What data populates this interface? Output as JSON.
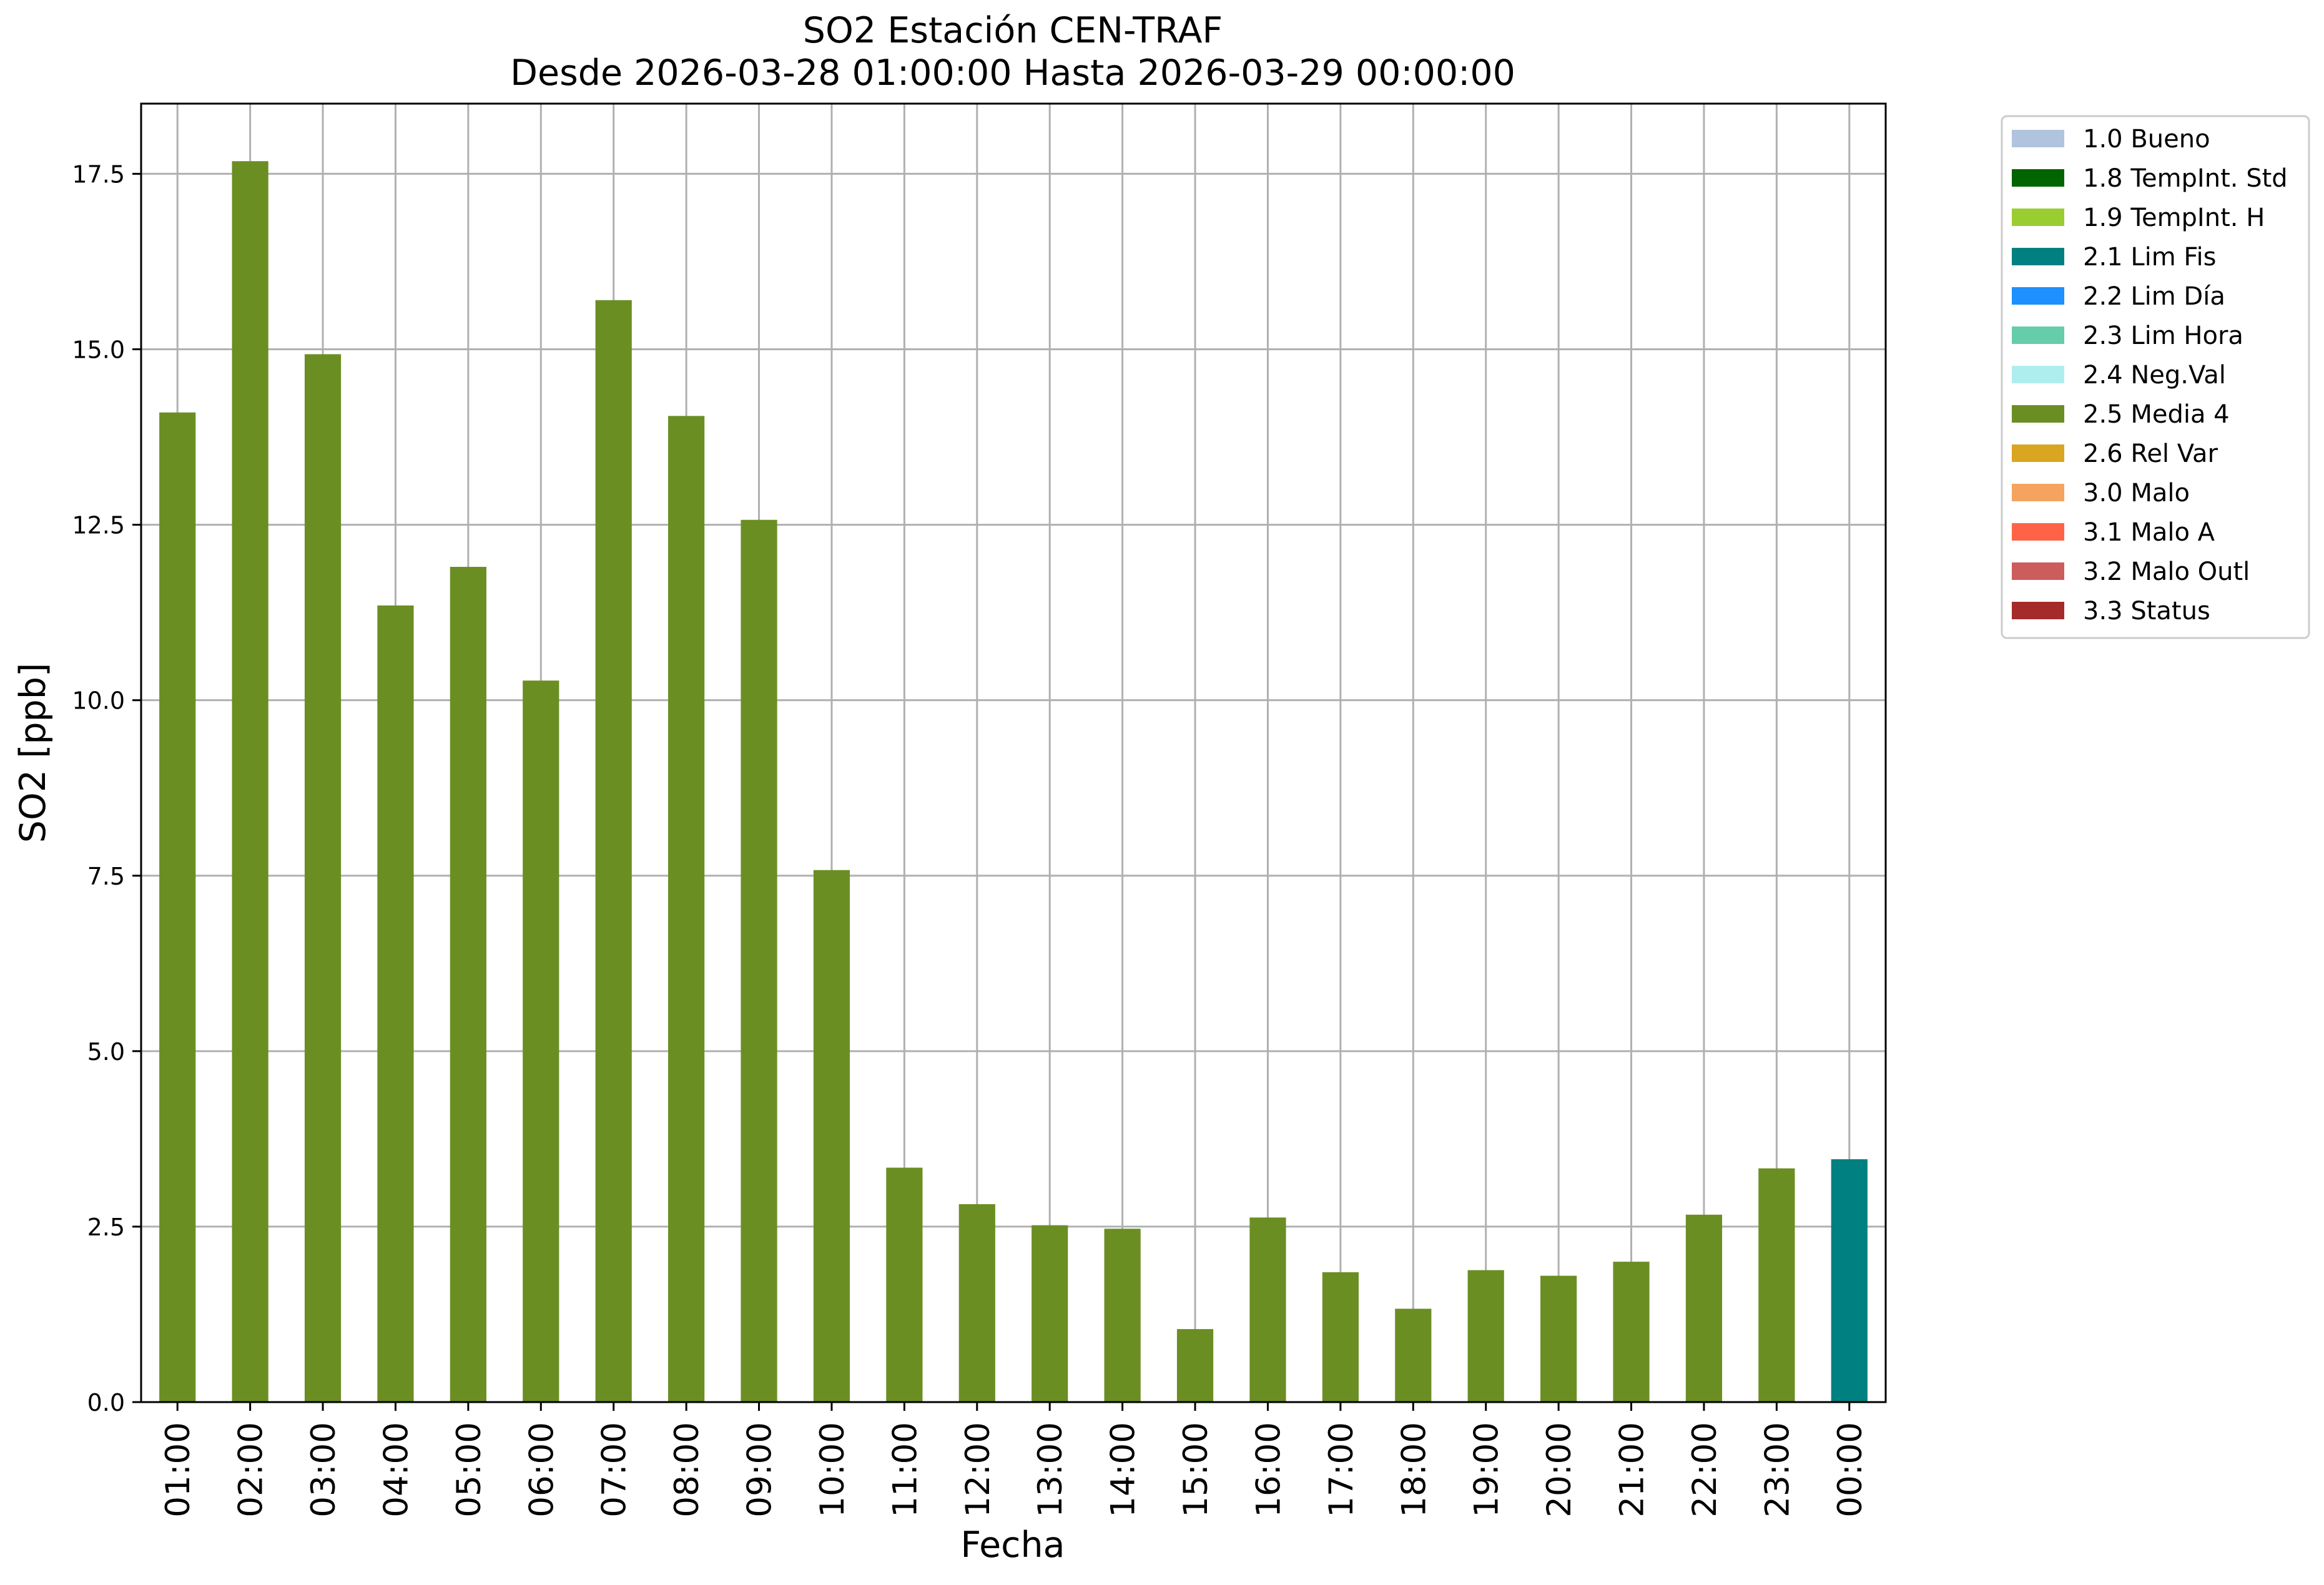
{
  "chart_data": {
    "type": "bar",
    "title_line1": "SO2 Estación CEN-TRAF",
    "title_line2": "Desde 2026-03-28 01:00:00 Hasta 2026-03-29 00:00:00",
    "xlabel": "Fecha",
    "ylabel": "SO2 [ppb]",
    "ylim": [
      0,
      18.5
    ],
    "yticks": [
      "0.0",
      "2.5",
      "5.0",
      "7.5",
      "10.0",
      "12.5",
      "15.0",
      "17.5"
    ],
    "grid": true,
    "legend_position": "outside-top-right",
    "categories": [
      "01:00",
      "02:00",
      "03:00",
      "04:00",
      "05:00",
      "06:00",
      "07:00",
      "08:00",
      "09:00",
      "10:00",
      "11:00",
      "12:00",
      "13:00",
      "14:00",
      "15:00",
      "16:00",
      "17:00",
      "18:00",
      "19:00",
      "20:00",
      "21:00",
      "22:00",
      "23:00",
      "00:00"
    ],
    "values": [
      14.1,
      17.68,
      14.93,
      11.35,
      11.9,
      10.28,
      15.7,
      14.05,
      12.57,
      7.58,
      3.34,
      2.82,
      2.52,
      2.47,
      1.04,
      2.63,
      1.85,
      1.33,
      1.88,
      1.8,
      2.0,
      2.67,
      3.33,
      3.46
    ],
    "flags": [
      "2.5 Media 4",
      "2.5 Media 4",
      "2.5 Media 4",
      "2.5 Media 4",
      "2.5 Media 4",
      "2.5 Media 4",
      "2.5 Media 4",
      "2.5 Media 4",
      "2.5 Media 4",
      "2.5 Media 4",
      "2.5 Media 4",
      "2.5 Media 4",
      "2.5 Media 4",
      "2.5 Media 4",
      "2.5 Media 4",
      "2.5 Media 4",
      "2.5 Media 4",
      "2.5 Media 4",
      "2.5 Media 4",
      "2.5 Media 4",
      "2.5 Media 4",
      "2.5 Media 4",
      "2.5 Media 4",
      "2.1 Lim Fis"
    ],
    "legend": [
      {
        "label": "1.0 Bueno",
        "color": "#b0c4de"
      },
      {
        "label": "1.8 TempInt. Std",
        "color": "#006400"
      },
      {
        "label": "1.9 TempInt. H",
        "color": "#9acd32"
      },
      {
        "label": "2.1 Lim Fis",
        "color": "#008080"
      },
      {
        "label": "2.2 Lim Día",
        "color": "#1e90ff"
      },
      {
        "label": "2.3 Lim Hora",
        "color": "#66cdaa"
      },
      {
        "label": "2.4 Neg.Val",
        "color": "#afeeee"
      },
      {
        "label": "2.5 Media 4",
        "color": "#6b8e23"
      },
      {
        "label": "2.6 Rel Var",
        "color": "#daa520"
      },
      {
        "label": "3.0 Malo",
        "color": "#f4a460"
      },
      {
        "label": "3.1 Malo A",
        "color": "#ff6347"
      },
      {
        "label": "3.2 Malo Outl",
        "color": "#cd5c5c"
      },
      {
        "label": "3.3 Status",
        "color": "#a52a2a"
      }
    ]
  }
}
